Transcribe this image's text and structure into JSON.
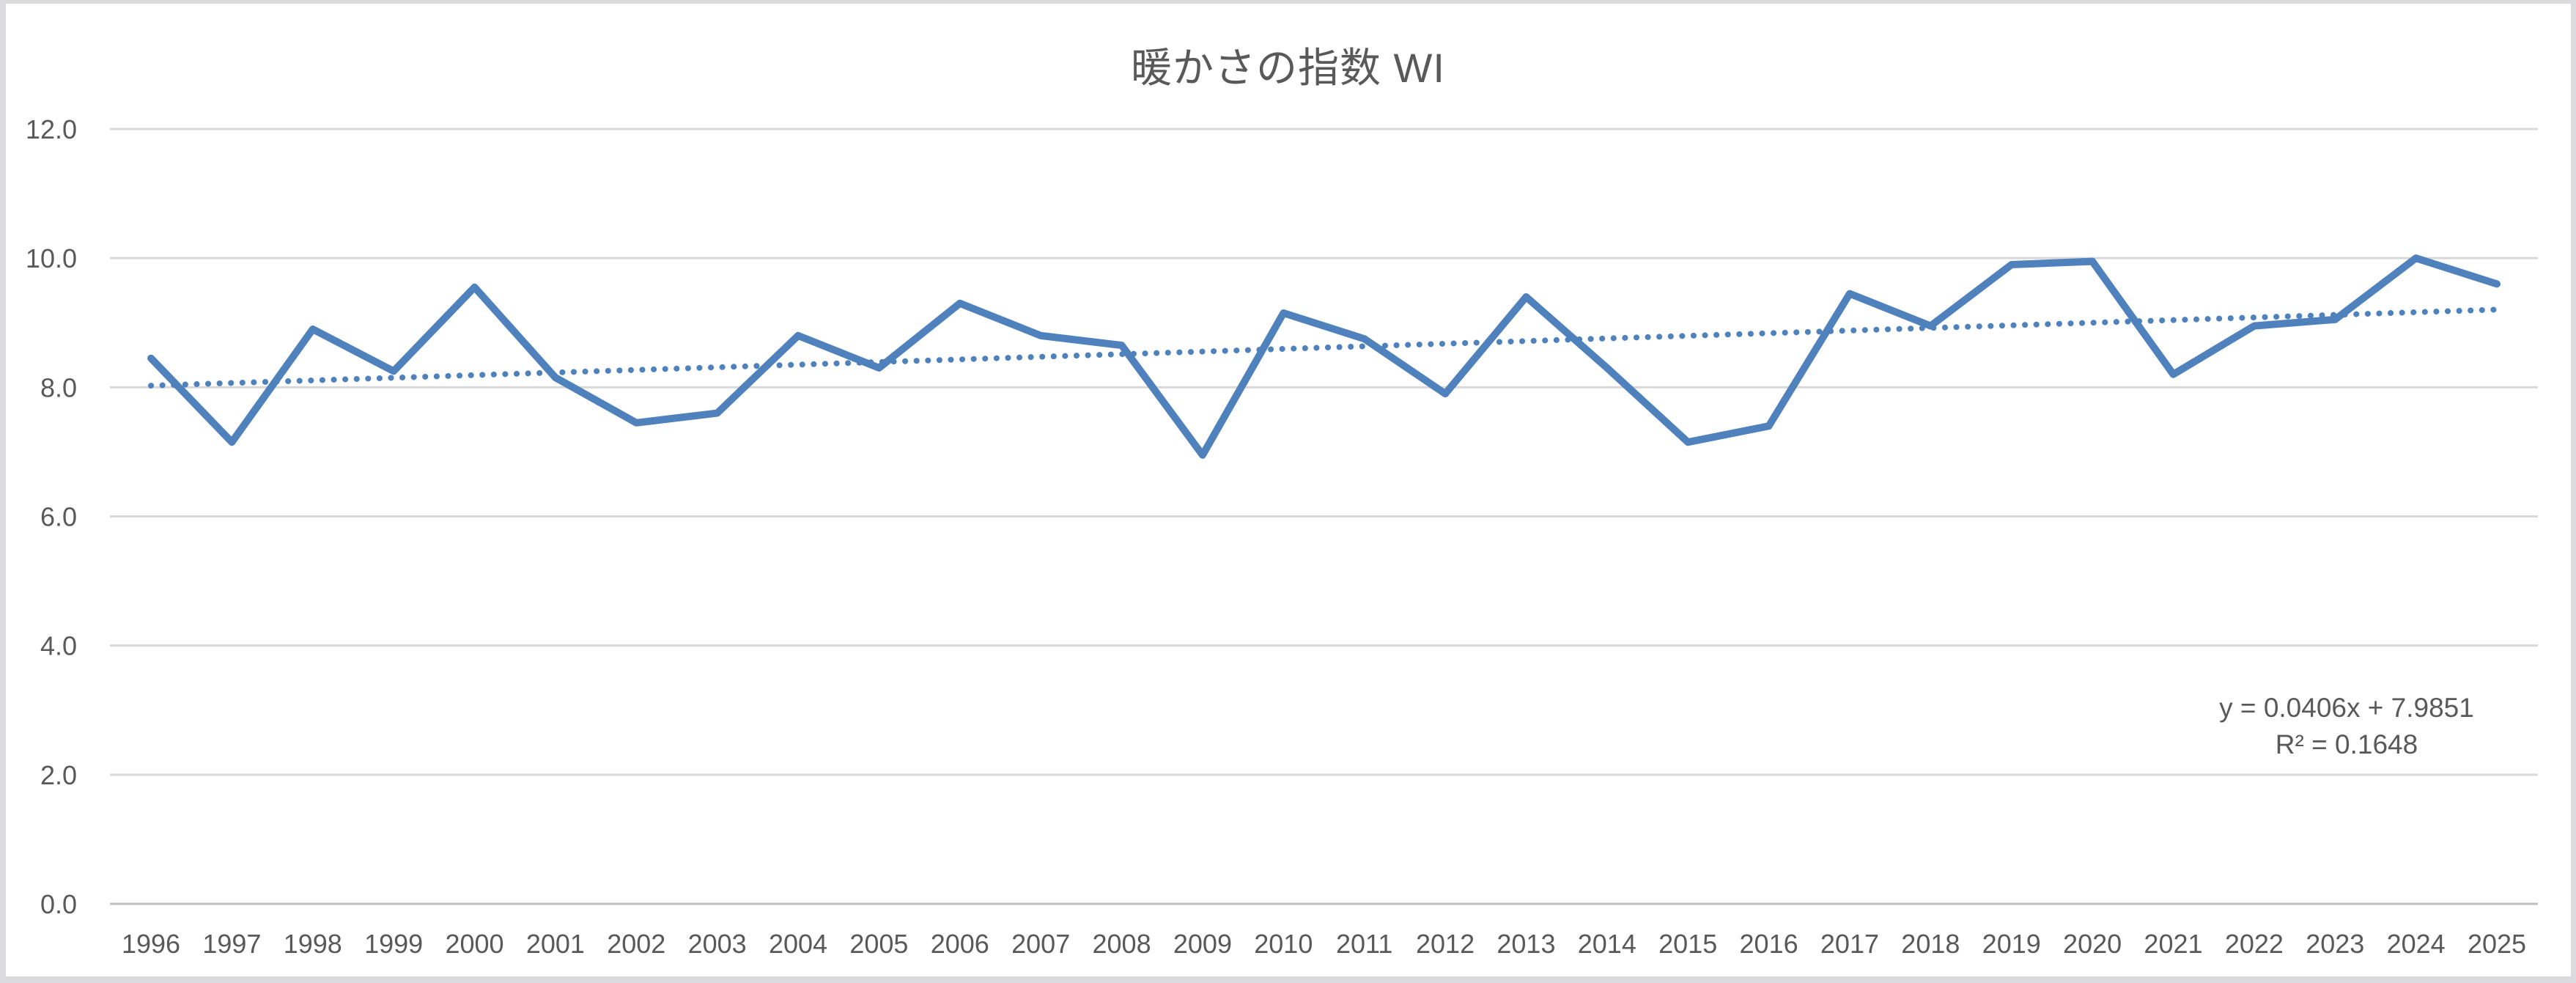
{
  "page": {
    "background_color": "#FFFFFF",
    "frame_color": "#DBDBDE"
  },
  "chart_data": {
    "type": "line",
    "title": "暖かさの指数 WI",
    "x": [
      1996,
      1997,
      1998,
      1999,
      2000,
      2001,
      2002,
      2003,
      2004,
      2005,
      2006,
      2007,
      2008,
      2009,
      2010,
      2011,
      2012,
      2013,
      2014,
      2015,
      2016,
      2017,
      2018,
      2019,
      2020,
      2021,
      2022,
      2023,
      2024,
      2025
    ],
    "series": [
      {
        "name": "WI",
        "values": [
          8.45,
          7.15,
          8.9,
          8.25,
          9.55,
          8.15,
          7.45,
          7.6,
          8.8,
          8.3,
          9.3,
          8.8,
          8.65,
          6.95,
          9.15,
          8.75,
          7.9,
          9.4,
          8.3,
          7.15,
          7.4,
          9.45,
          8.95,
          9.9,
          9.95,
          8.2,
          8.95,
          9.05,
          10.0,
          9.6
        ],
        "color": "#4F81BD",
        "style": "solid"
      }
    ],
    "trendline": {
      "slope": 0.0406,
      "intercept": 7.9851,
      "r_squared": 0.1648,
      "equation_label": "y = 0.0406x + 7.9851",
      "r2_label": "R² = 0.1648",
      "color": "#4F81BD",
      "style": "dotted"
    },
    "ylim": [
      0,
      12
    ],
    "ytick_step": 2,
    "ytick_labels": [
      "0.0",
      "2.0",
      "4.0",
      "6.0",
      "8.0",
      "10.0",
      "12.0"
    ],
    "grid": "horizontal",
    "gridline_color": "#D9D9D9",
    "axisline_color": "#BFBFBF",
    "label_color": "#595959",
    "legend_position": "none"
  }
}
